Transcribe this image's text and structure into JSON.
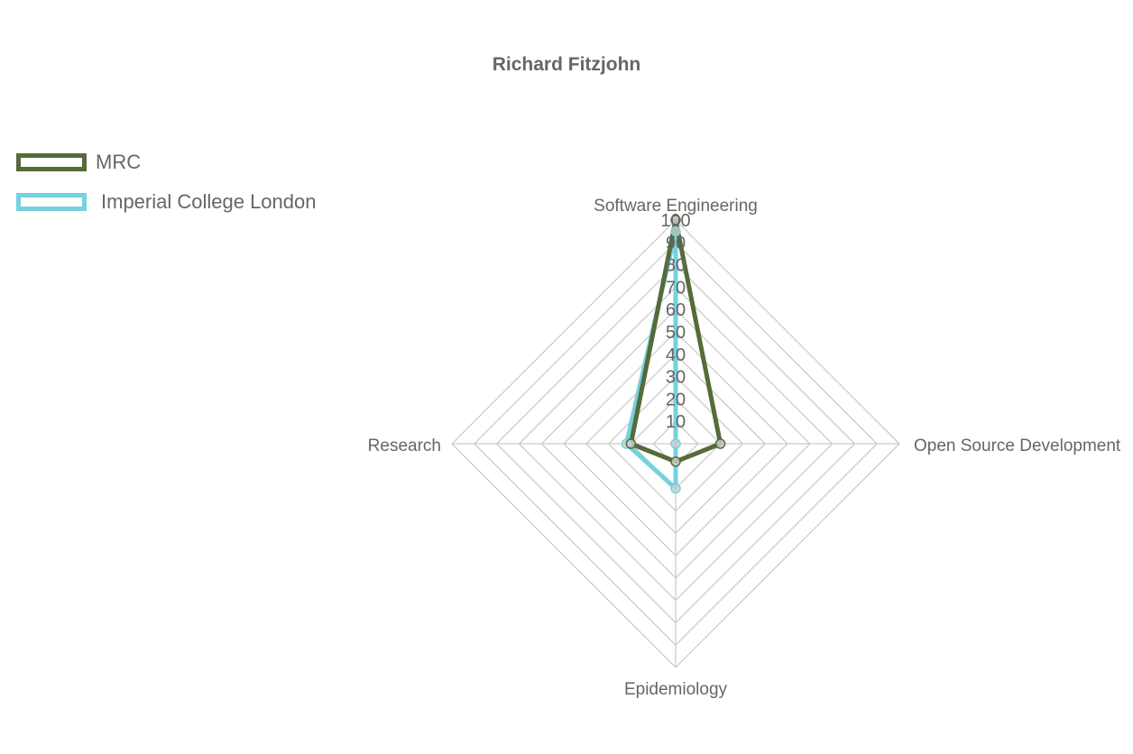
{
  "chart_data": {
    "type": "radar",
    "title": "Richard Fitzjohn",
    "axes": [
      "Software Engineering",
      "Open Source Development",
      "Epidemiology",
      "Research"
    ],
    "range": [
      0,
      100
    ],
    "ticks": [
      10,
      20,
      30,
      40,
      50,
      60,
      70,
      80,
      90,
      100
    ],
    "grid": true,
    "legend_position": "top-left",
    "series": [
      {
        "name": "MRC",
        "values": [
          100,
          20,
          8,
          20
        ],
        "color": "#556b3a"
      },
      {
        "name": "Imperial College London",
        "values": [
          95,
          0,
          20,
          22
        ],
        "color": "#74d2de"
      }
    ]
  }
}
